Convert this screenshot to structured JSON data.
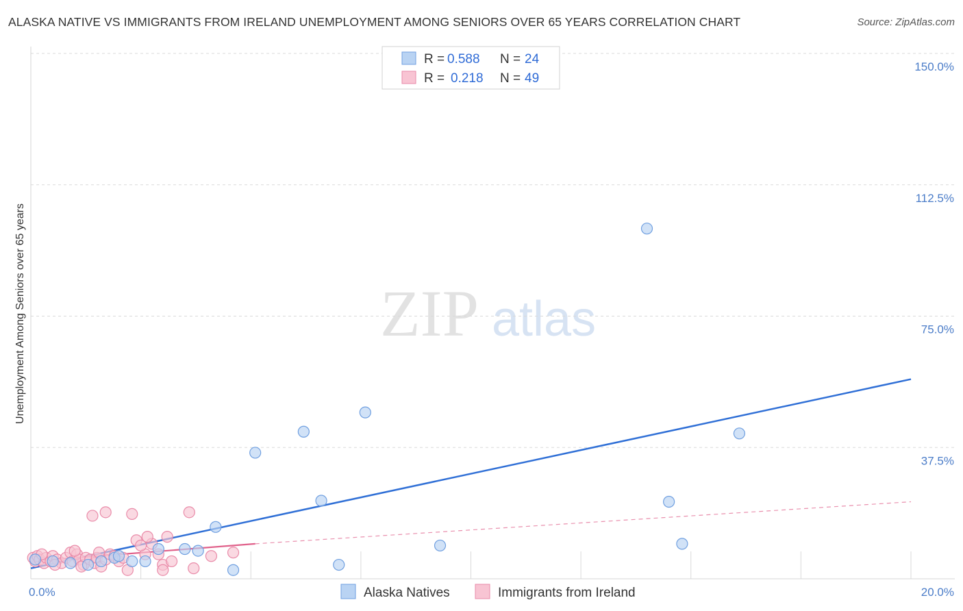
{
  "header": {
    "title": "ALASKA NATIVE VS IMMIGRANTS FROM IRELAND UNEMPLOYMENT AMONG SENIORS OVER 65 YEARS CORRELATION CHART",
    "source": "Source: ZipAtlas.com"
  },
  "watermark": {
    "zip": "ZIP",
    "atlas": "atlas"
  },
  "colors": {
    "blue_fill": "#b9d3f3",
    "blue_stroke": "#6f9fe0",
    "blue_line": "#2f6fd6",
    "pink_fill": "#f8c4d3",
    "pink_stroke": "#e98aa8",
    "pink_line": "#e0608a"
  },
  "chart_data": {
    "type": "scatter",
    "title": "ALASKA NATIVE VS IMMIGRANTS FROM IRELAND UNEMPLOYMENT AMONG SENIORS OVER 65 YEARS CORRELATION CHART",
    "xlabel": "",
    "ylabel": "Unemployment Among Seniors over 65 years",
    "xlim": [
      0,
      20
    ],
    "ylim": [
      0,
      150
    ],
    "x_ticks": [
      "0.0%",
      "20.0%"
    ],
    "y_ticks": [
      {
        "value": 37.5,
        "label": "37.5%"
      },
      {
        "value": 75,
        "label": "75.0%"
      },
      {
        "value": 112.5,
        "label": "112.5%"
      },
      {
        "value": 150,
        "label": "150.0%"
      }
    ],
    "grid": true,
    "legend_position": "top-center",
    "series": [
      {
        "name": "Alaska Natives",
        "R": "0.588",
        "N": "24",
        "r_label": "R =",
        "n_label": "N =",
        "trend": {
          "x0": 0,
          "y0": 3.0,
          "x1": 20,
          "y1": 57.0,
          "extend_dashed": false
        },
        "points": [
          [
            0.1,
            5.5
          ],
          [
            0.9,
            4.5
          ],
          [
            1.3,
            4.0
          ],
          [
            1.6,
            5.0
          ],
          [
            1.9,
            6.0
          ],
          [
            2.3,
            5.0
          ],
          [
            2.6,
            5.0
          ],
          [
            2.9,
            8.5
          ],
          [
            3.5,
            8.5
          ],
          [
            3.8,
            8.0
          ],
          [
            4.2,
            14.8
          ],
          [
            4.6,
            2.5
          ],
          [
            5.1,
            36.0
          ],
          [
            6.2,
            42.0
          ],
          [
            6.6,
            22.3
          ],
          [
            7.0,
            4.0
          ],
          [
            7.6,
            47.5
          ],
          [
            9.3,
            9.5
          ],
          [
            14.0,
            100.0
          ],
          [
            14.5,
            22.0
          ],
          [
            14.8,
            10.0
          ],
          [
            16.1,
            41.5
          ],
          [
            0.5,
            5.0
          ],
          [
            2.0,
            6.5
          ]
        ]
      },
      {
        "name": "Immigrants from Ireland",
        "R": "0.218",
        "N": "49",
        "r_label": "R =",
        "n_label": "N =",
        "trend": {
          "x0": 0,
          "y0": 5.0,
          "x1": 5.1,
          "y1": 10.0,
          "dashed_x1": 20,
          "dashed_y1": 22.0
        },
        "points": [
          [
            0.05,
            6.0
          ],
          [
            0.1,
            5.0
          ],
          [
            0.15,
            6.5
          ],
          [
            0.2,
            5.5
          ],
          [
            0.3,
            4.5
          ],
          [
            0.35,
            6.0
          ],
          [
            0.45,
            5.0
          ],
          [
            0.5,
            6.5
          ],
          [
            0.6,
            5.5
          ],
          [
            0.7,
            4.5
          ],
          [
            0.8,
            6.0
          ],
          [
            0.9,
            7.5
          ],
          [
            0.95,
            5.0
          ],
          [
            1.05,
            7.0
          ],
          [
            1.1,
            5.5
          ],
          [
            1.2,
            4.0
          ],
          [
            1.25,
            6.0
          ],
          [
            1.35,
            5.5
          ],
          [
            1.45,
            4.5
          ],
          [
            1.5,
            6.0
          ],
          [
            1.6,
            3.5
          ],
          [
            1.7,
            5.5
          ],
          [
            1.8,
            7.0
          ],
          [
            1.9,
            6.5
          ],
          [
            2.0,
            5.0
          ],
          [
            1.4,
            18.0
          ],
          [
            1.7,
            19.0
          ],
          [
            2.2,
            2.5
          ],
          [
            2.1,
            6.0
          ],
          [
            2.4,
            11.0
          ],
          [
            2.3,
            18.5
          ],
          [
            2.6,
            7.0
          ],
          [
            2.75,
            10.0
          ],
          [
            2.9,
            7.0
          ],
          [
            3.0,
            4.0
          ],
          [
            2.65,
            12.0
          ],
          [
            3.0,
            2.5
          ],
          [
            3.1,
            12.0
          ],
          [
            3.2,
            5.0
          ],
          [
            3.6,
            19.0
          ],
          [
            3.7,
            3.0
          ],
          [
            4.1,
            6.5
          ],
          [
            4.6,
            7.5
          ],
          [
            0.25,
            7.0
          ],
          [
            0.55,
            4.0
          ],
          [
            1.0,
            8.0
          ],
          [
            1.15,
            3.5
          ],
          [
            1.55,
            7.5
          ],
          [
            2.5,
            9.5
          ]
        ]
      }
    ]
  }
}
